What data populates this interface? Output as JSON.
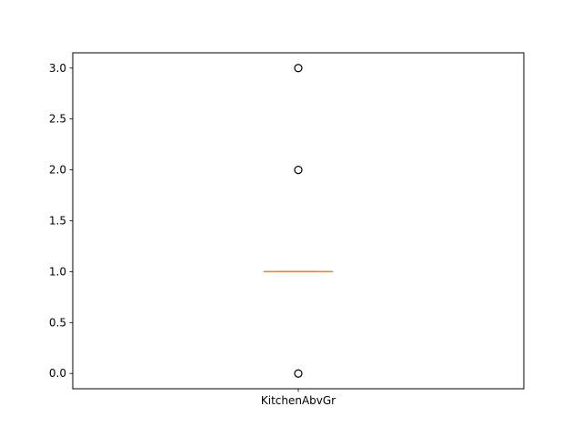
{
  "chart_data": {
    "type": "box",
    "categories": [
      "KitchenAbvGr"
    ],
    "title": "",
    "xlabel": "",
    "ylabel": "",
    "ylim": [
      -0.15,
      3.15
    ],
    "y_ticks": [
      0.0,
      0.5,
      1.0,
      1.5,
      2.0,
      2.5,
      3.0
    ],
    "y_tick_labels": [
      "0.0",
      "0.5",
      "1.0",
      "1.5",
      "2.0",
      "2.5",
      "3.0"
    ],
    "grid": false,
    "legend": "none",
    "boxes": [
      {
        "category": "KitchenAbvGr",
        "whisker_low": 1.0,
        "q1": 1.0,
        "median": 1.0,
        "q3": 1.0,
        "whisker_high": 1.0,
        "outliers": [
          0.0,
          2.0,
          3.0
        ]
      }
    ],
    "colors": {
      "box": "#000000",
      "median": "#ff7f0e",
      "outlier": "#000000"
    }
  }
}
